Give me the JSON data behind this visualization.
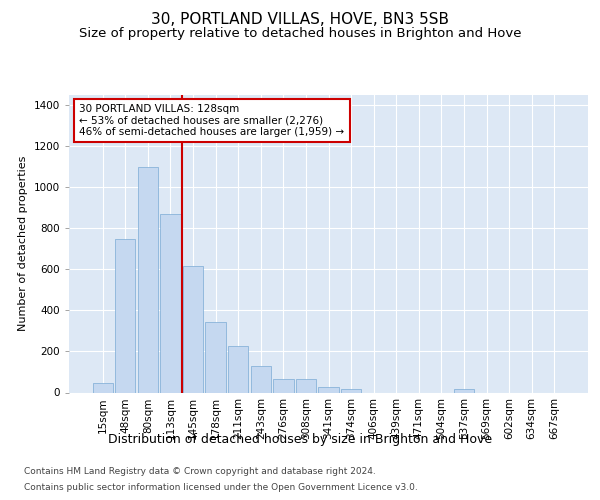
{
  "title": "30, PORTLAND VILLAS, HOVE, BN3 5SB",
  "subtitle": "Size of property relative to detached houses in Brighton and Hove",
  "xlabel": "Distribution of detached houses by size in Brighton and Hove",
  "ylabel": "Number of detached properties",
  "categories": [
    "15sqm",
    "48sqm",
    "80sqm",
    "113sqm",
    "145sqm",
    "178sqm",
    "211sqm",
    "243sqm",
    "276sqm",
    "308sqm",
    "341sqm",
    "374sqm",
    "406sqm",
    "439sqm",
    "471sqm",
    "504sqm",
    "537sqm",
    "569sqm",
    "602sqm",
    "634sqm",
    "667sqm"
  ],
  "bar_heights": [
    48,
    750,
    1100,
    870,
    615,
    345,
    225,
    130,
    65,
    65,
    25,
    15,
    0,
    0,
    0,
    0,
    15,
    0,
    0,
    0,
    0
  ],
  "bar_color": "#c5d8f0",
  "bar_edge_color": "#7aaad4",
  "vline_pos": 3.5,
  "vline_color": "#cc0000",
  "annotation_text": "30 PORTLAND VILLAS: 128sqm\n← 53% of detached houses are smaller (2,276)\n46% of semi-detached houses are larger (1,959) →",
  "annotation_box_color": "#ffffff",
  "annotation_box_edge": "#cc0000",
  "ylim": [
    0,
    1450
  ],
  "yticks": [
    0,
    200,
    400,
    600,
    800,
    1000,
    1200,
    1400
  ],
  "bg_color": "#dde8f5",
  "footer1": "Contains HM Land Registry data © Crown copyright and database right 2024.",
  "footer2": "Contains public sector information licensed under the Open Government Licence v3.0.",
  "title_fontsize": 11,
  "subtitle_fontsize": 9.5,
  "xlabel_fontsize": 9,
  "ylabel_fontsize": 8,
  "tick_fontsize": 7.5,
  "footer_fontsize": 6.5
}
